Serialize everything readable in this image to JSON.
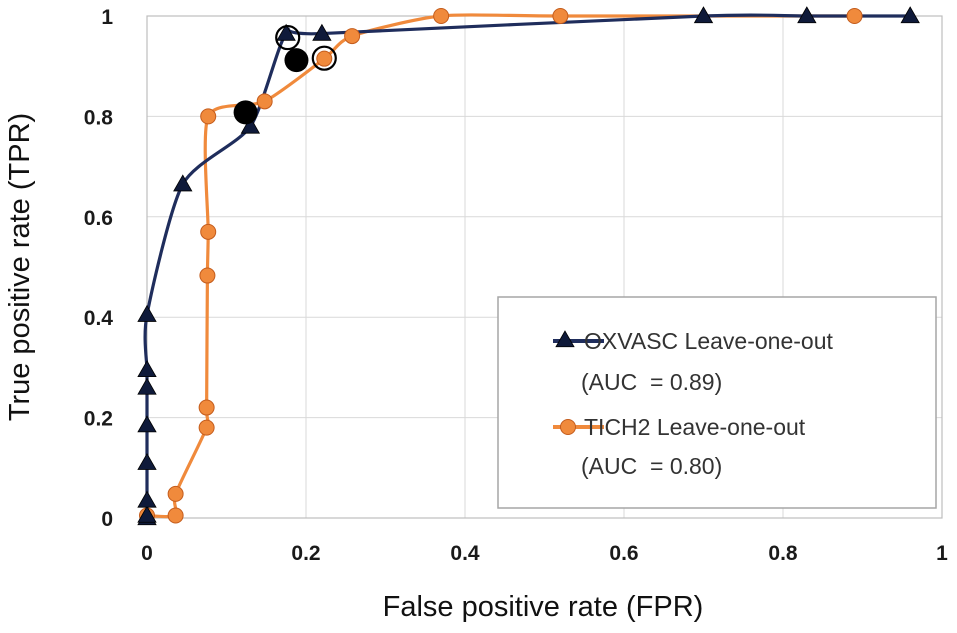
{
  "chart_data": {
    "type": "line",
    "title": "",
    "xlabel": "False positive rate (FPR)",
    "ylabel": "True positive rate (TPR)",
    "xlim": [
      0,
      1
    ],
    "ylim": [
      0,
      1
    ],
    "grid": true,
    "x_ticks": [
      0,
      0.2,
      0.4,
      0.6,
      0.8,
      1
    ],
    "x_tick_labels": [
      "0",
      "0.2",
      "0.4",
      "0.6",
      "0.8",
      "1"
    ],
    "y_ticks": [
      0,
      0.2,
      0.4,
      0.6,
      0.8,
      1
    ],
    "y_tick_labels": [
      "0",
      "0.2",
      "0.4",
      "0.6",
      "0.8",
      "1"
    ],
    "legend_position": "bottom-right",
    "series": [
      {
        "name": "OXVASC Leave-one-out",
        "auc_label": "(AUC  = 0.89)",
        "color": "#1f2d5c",
        "marker": "triangle",
        "x": [
          0,
          0,
          0,
          0,
          0,
          0,
          0,
          0,
          0.045,
          0.13,
          0.175,
          0.22,
          0.7,
          0.83,
          0.96
        ],
        "y": [
          0,
          0.005,
          0.035,
          0.11,
          0.185,
          0.26,
          0.295,
          0.405,
          0.665,
          0.78,
          0.965,
          0.965,
          1.0,
          1.0,
          1.0
        ],
        "highlight_open": [
          {
            "x": 0.177,
            "y": 0.957
          }
        ],
        "highlight_filled": [
          {
            "x": 0.124,
            "y": 0.808
          }
        ]
      },
      {
        "name": "TICH2 Leave-one-out",
        "auc_label": "(AUC  = 0.80)",
        "color": "#f08a3c",
        "marker": "circle",
        "x": [
          0,
          0.036,
          0.036,
          0.075,
          0.075,
          0.076,
          0.077,
          0.077,
          0.148,
          0.223,
          0.258,
          0.37,
          0.52,
          0.89
        ],
        "y": [
          0.005,
          0.005,
          0.048,
          0.18,
          0.22,
          0.483,
          0.57,
          0.8,
          0.83,
          0.915,
          0.96,
          1.0,
          1.0,
          1.0
        ],
        "highlight_open": [
          {
            "x": 0.223,
            "y": 0.916
          }
        ],
        "highlight_filled": [
          {
            "x": 0.188,
            "y": 0.912
          }
        ]
      }
    ]
  }
}
